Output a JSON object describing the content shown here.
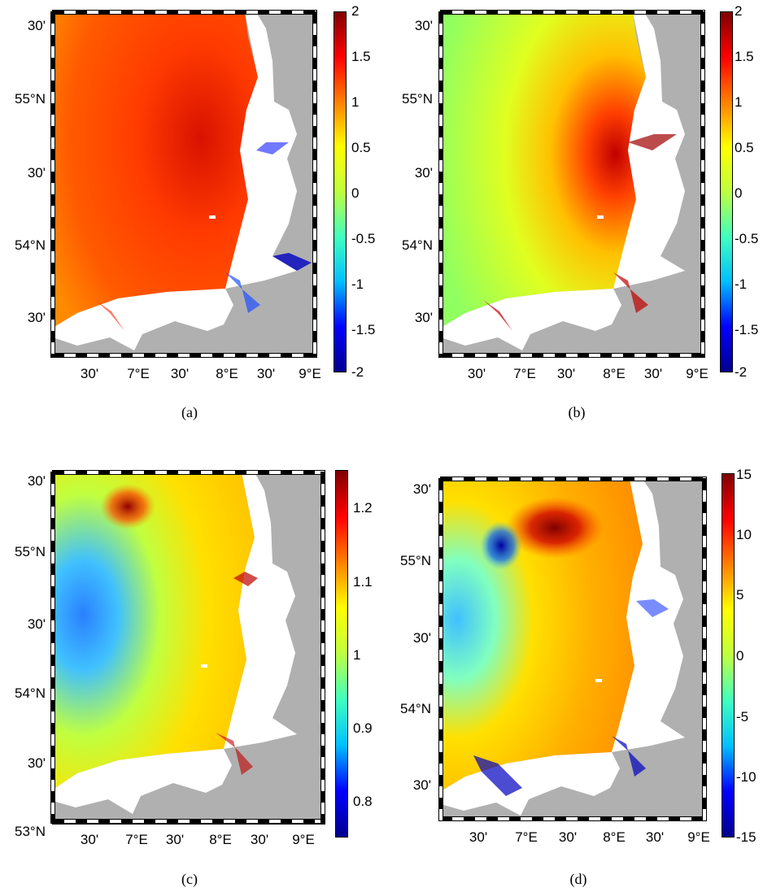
{
  "panels": [
    {
      "caption": "(a)",
      "lat_labels": [
        "30'",
        "55°N",
        "30'",
        "54°N",
        "30'"
      ],
      "lon_labels": [
        "30'",
        "7°E",
        "30'",
        "8°E",
        "30'",
        "9°E"
      ],
      "colorbar_ticks": [
        "2",
        "1.5",
        "1",
        "0.5",
        "0",
        "-0.5",
        "-1",
        "-1.5",
        "-2"
      ],
      "colorbar_range": [
        -2,
        2
      ]
    },
    {
      "caption": "(b)",
      "lat_labels": [
        "30'",
        "55°N",
        "30'",
        "54°N",
        "30'"
      ],
      "lon_labels": [
        "30'",
        "7°E",
        "30'",
        "8°E",
        "30'",
        "9°E"
      ],
      "colorbar_ticks": [
        "2",
        "1.5",
        "1",
        "0.5",
        "0",
        "-0.5",
        "-1",
        "-1.5",
        "-2"
      ],
      "colorbar_range": [
        -2,
        2
      ]
    },
    {
      "caption": "(c)",
      "lat_labels": [
        "30'",
        "55°N",
        "30'",
        "54°N",
        "30'",
        "53°N"
      ],
      "lon_labels": [
        "30'",
        "7°E",
        "30'",
        "8°E",
        "30'",
        "9°E"
      ],
      "colorbar_ticks": [
        "1.2",
        "1.1",
        "1",
        "0.9",
        "0.8"
      ],
      "colorbar_range": [
        0.75,
        1.25
      ]
    },
    {
      "caption": "(d)",
      "lat_labels": [
        "30'",
        "55°N",
        "30'",
        "54°N",
        "30'"
      ],
      "lon_labels": [
        "30'",
        "7°E",
        "30'",
        "8°E",
        "30'",
        "9°E"
      ],
      "colorbar_ticks": [
        "15",
        "10",
        "5",
        "0",
        "-5",
        "-10",
        "-15"
      ],
      "colorbar_range": [
        -15,
        15
      ]
    }
  ],
  "colormap": [
    "#00008f",
    "#0000ff",
    "#00bfff",
    "#40ffbf",
    "#bfff40",
    "#ffff00",
    "#ff8000",
    "#ff0000",
    "#800000"
  ],
  "land_color": "#b0b0b0"
}
